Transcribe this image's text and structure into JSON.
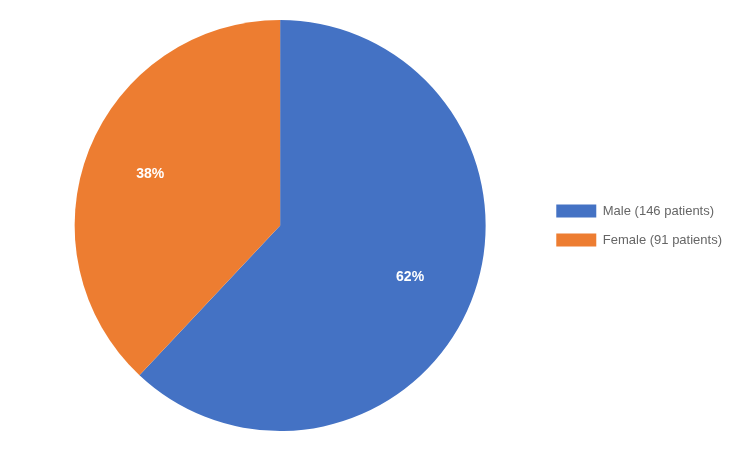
{
  "chart_data": {
    "type": "pie",
    "categories": [
      "Male (146 patients)",
      "Female (91 patients)"
    ],
    "values": [
      62,
      38
    ],
    "value_labels": [
      "62%",
      "38%"
    ],
    "colors": [
      "#4472C4",
      "#ED7D31"
    ],
    "data_labels": true,
    "legend": "right"
  }
}
